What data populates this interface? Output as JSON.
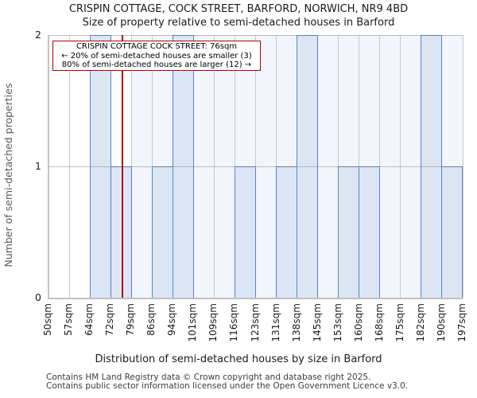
{
  "title": {
    "line1": "CRISPIN COTTAGE, COCK STREET, BARFORD, NORWICH, NR9 4BD",
    "line2": "Size of property relative to semi-detached houses in Barford"
  },
  "chart_data": {
    "type": "bar",
    "title": "CRISPIN COTTAGE, COCK STREET, BARFORD, NORWICH, NR9 4BD",
    "subtitle": "Size of property relative to semi-detached houses in Barford",
    "categories": [
      "50sqm",
      "57sqm",
      "64sqm",
      "72sqm",
      "79sqm",
      "86sqm",
      "94sqm",
      "101sqm",
      "109sqm",
      "116sqm",
      "123sqm",
      "131sqm",
      "138sqm",
      "145sqm",
      "153sqm",
      "160sqm",
      "168sqm",
      "175sqm",
      "182sqm",
      "190sqm",
      "197sqm"
    ],
    "bin_edges_sqm": [
      50,
      57,
      64,
      72,
      79,
      86,
      94,
      101,
      109,
      116,
      123,
      131,
      138,
      145,
      153,
      160,
      168,
      175,
      182,
      190,
      197
    ],
    "values": [
      0,
      0,
      2,
      1,
      0,
      1,
      2,
      0,
      0,
      1,
      0,
      1,
      2,
      0,
      1,
      1,
      0,
      0,
      2,
      1
    ],
    "pale_backdrop": [
      false,
      false,
      true,
      false,
      true,
      true,
      true,
      true,
      true,
      true,
      true,
      true,
      true,
      true,
      true,
      true,
      true,
      true,
      true,
      true
    ],
    "yticks": [
      "0",
      "1",
      "2"
    ],
    "ylim": [
      0,
      2
    ],
    "grid": true,
    "legend": "none",
    "ylabel": "Number of semi-detached properties",
    "xlabel": "Distribution of semi-detached houses by size in Barford",
    "property_line_sqm": 76,
    "annotation": {
      "line1": "CRISPIN COTTAGE COCK STREET: 76sqm",
      "line2": "← 20% of semi-detached houses are smaller (3)",
      "line3": "80% of semi-detached houses are larger (12) →"
    },
    "colors": {
      "bar_fill": "#dce5f4",
      "bar_border": "#5585c6",
      "backdrop": "#f2f5fc",
      "gridline": "#c9c9c9",
      "axis": "#c1c1c1",
      "marker_red": "#b40000"
    }
  },
  "footer": {
    "line1": "Contains HM Land Registry data © Crown copyright and database right 2025.",
    "line2": "Contains public sector information licensed under the Open Government Licence v3.0."
  }
}
